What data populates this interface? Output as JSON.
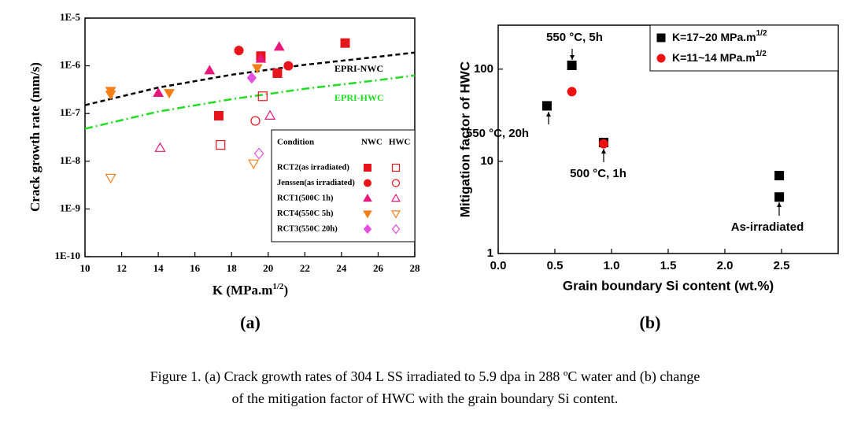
{
  "figure": {
    "panel_labels": [
      "(a)",
      "(b)"
    ],
    "caption": [
      "Figure 1. (a) Crack growth rates of 304 L SS irradiated to 5.9 dpa in 288 ºC water and (b) change",
      "of the mitigation factor of HWC with the grain boundary Si content."
    ]
  },
  "chart_data": [
    {
      "type": "scatter",
      "log_y": true,
      "ylabel": "Crack growth rate (mm/s)",
      "xlabel": [
        "K (MPa.m",
        "1/2",
        ")"
      ],
      "xlim": [
        10,
        28
      ],
      "xticks": [
        10,
        12,
        14,
        16,
        18,
        20,
        22,
        24,
        26,
        28
      ],
      "ylim": [
        1e-10,
        1e-05
      ],
      "yticks": [
        {
          "value": 1e-10,
          "label": "1E-10"
        },
        {
          "value": 1e-09,
          "label": "1E-9"
        },
        {
          "value": 1e-08,
          "label": "1E-8"
        },
        {
          "value": 1e-07,
          "label": "1E-7"
        },
        {
          "value": 1e-06,
          "label": "1E-6"
        },
        {
          "value": 1e-05,
          "label": "1E-5"
        }
      ],
      "legend_header": [
        "Condition",
        "NWC",
        "HWC"
      ],
      "series": [
        {
          "name": "RCT2(as irradiated)",
          "color": "#e8141b",
          "marker": "square",
          "nwc": {
            "x": [
              17.3,
              19.6,
              20.5,
              24.2
            ],
            "values": [
              9e-08,
              1.6e-06,
              7e-07,
              3e-06
            ]
          },
          "hwc": {
            "x": [
              17.4,
              19.7
            ],
            "values": [
              2.2e-08,
              2.3e-07
            ]
          }
        },
        {
          "name": "Jenssen(as irradiated)",
          "color": "#e8141b",
          "marker": "circle",
          "nwc": {
            "x": [
              18.4,
              21.1
            ],
            "values": [
              2.1e-06,
              1e-06
            ]
          },
          "hwc": {
            "x": [
              19.3
            ],
            "values": [
              7e-08
            ]
          }
        },
        {
          "name": "RCT1(500C 1h)",
          "color": "#e6197a",
          "marker": "triangle",
          "nwc": {
            "x": [
              14,
              16.8,
              19.6,
              20.6
            ],
            "values": [
              2.7e-07,
              8e-07,
              1.4e-06,
              2.5e-06
            ]
          },
          "hwc": {
            "x": [
              14.1,
              20.1
            ],
            "values": [
              1.9e-08,
              9e-08
            ]
          }
        },
        {
          "name": "RCT4(550C 5h)",
          "color": "#f57f17",
          "marker": "triangle-down",
          "nwc": {
            "x": [
              11.4,
              11.4,
              14.6,
              19.4
            ],
            "values": [
              3e-07,
              2.5e-07,
              2.7e-07,
              9e-07
            ]
          },
          "hwc": {
            "x": [
              11.4,
              19.2
            ],
            "values": [
              4.5e-09,
              9e-09
            ]
          }
        },
        {
          "name": "RCT3(550C 20h)",
          "color": "#e34fe0",
          "marker": "diamond",
          "nwc": {
            "x": [
              19.1
            ],
            "values": [
              5.6e-07
            ]
          },
          "hwc": {
            "x": [
              19.5
            ],
            "values": [
              1.45e-08
            ]
          }
        }
      ],
      "lines": [
        {
          "name": "EPRI-NWC",
          "color": "#000000",
          "dash": "dashed",
          "x": [
            10,
            14,
            18,
            22,
            26,
            28
          ],
          "values": [
            1.5e-07,
            3.5e-07,
            6.5e-07,
            1.05e-06,
            1.55e-06,
            1.9e-06
          ]
        },
        {
          "name": "EPRI-HWC",
          "color": "#22dd22",
          "dash": "dash-dot",
          "x": [
            10,
            14,
            18,
            22,
            26,
            28
          ],
          "values": [
            4.8e-08,
            1.1e-07,
            2e-07,
            3.3e-07,
            5e-07,
            6.3e-07
          ]
        }
      ]
    },
    {
      "type": "scatter",
      "log_y": true,
      "ylabel": "Mitigation factor of HWC",
      "xlabel": "Grain boundary Si content (wt.%)",
      "xlim": [
        0,
        3
      ],
      "xticks": [
        {
          "value": 0,
          "label": "0.0"
        },
        0.5,
        {
          "value": 1,
          "label": "1.0"
        },
        1.5,
        {
          "value": 2,
          "label": "2.0"
        },
        2.5
      ],
      "ylim": [
        1,
        300
      ],
      "yticks": [
        1,
        10,
        100
      ],
      "legend": "upper right",
      "series": [
        {
          "name": "K=17~20 MPa.m",
          "name_sup": "1/2",
          "color": "#000000",
          "marker": "square",
          "x": [
            0.43,
            0.65,
            0.93,
            2.48,
            2.48
          ],
          "values": [
            40,
            110,
            16,
            7,
            4.1
          ]
        },
        {
          "name": "K=11~14 MPa.m",
          "name_sup": "1/2",
          "color": "#ee1111",
          "marker": "circle",
          "x": [
            0.65,
            0.93
          ],
          "values": [
            57,
            15.5
          ]
        }
      ],
      "annotations": [
        "550 °C, 5h",
        "550 °C, 20h",
        "500 °C, 1h",
        "As-irradiated"
      ]
    }
  ]
}
